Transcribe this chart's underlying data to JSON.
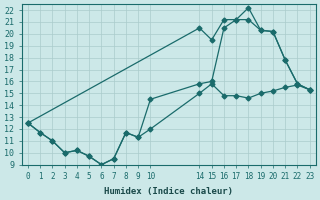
{
  "xlabel": "Humidex (Indice chaleur)",
  "background_color": "#cce8e8",
  "grid_color": "#aacccc",
  "line_color": "#1a6b6b",
  "xlim": [
    -0.5,
    23.5
  ],
  "ylim": [
    9,
    22.5
  ],
  "yticks": [
    9,
    10,
    11,
    12,
    13,
    14,
    15,
    16,
    17,
    18,
    19,
    20,
    21,
    22
  ],
  "xtick_positions": [
    0,
    1,
    2,
    3,
    4,
    5,
    6,
    7,
    8,
    9,
    10,
    14,
    15,
    16,
    17,
    18,
    19,
    20,
    21,
    22,
    23
  ],
  "xtick_labels": [
    "0",
    "1",
    "2",
    "3",
    "4",
    "5",
    "6",
    "7",
    "8",
    "9",
    "10",
    "14",
    "15",
    "16",
    "17",
    "18",
    "19",
    "20",
    "21",
    "22",
    "23"
  ],
  "line1_x": [
    0,
    1,
    2,
    3,
    4,
    5,
    6,
    7,
    8,
    9,
    10,
    14,
    15,
    16,
    17,
    18,
    19,
    20,
    21,
    22,
    23
  ],
  "line1_y": [
    12.5,
    11.7,
    11.0,
    10.0,
    10.2,
    9.7,
    9.0,
    9.5,
    11.7,
    11.3,
    12.0,
    15.0,
    15.8,
    14.8,
    14.8,
    14.6,
    15.0,
    15.2,
    15.5,
    15.7,
    15.3
  ],
  "line2_x": [
    0,
    1,
    2,
    3,
    4,
    5,
    6,
    7,
    8,
    9,
    10,
    14,
    15,
    16,
    17,
    18,
    19,
    20,
    21,
    22,
    23
  ],
  "line2_y": [
    12.5,
    11.7,
    11.0,
    10.0,
    10.2,
    9.7,
    9.0,
    9.5,
    11.7,
    11.3,
    14.5,
    15.8,
    16.0,
    20.5,
    21.2,
    21.2,
    20.3,
    20.2,
    17.8,
    15.8,
    15.3
  ],
  "line3_x": [
    0,
    14,
    15,
    16,
    17,
    18,
    19,
    20,
    21,
    22,
    23
  ],
  "line3_y": [
    12.5,
    20.5,
    19.5,
    21.2,
    21.2,
    22.2,
    20.3,
    20.2,
    17.8,
    15.8,
    15.3
  ]
}
